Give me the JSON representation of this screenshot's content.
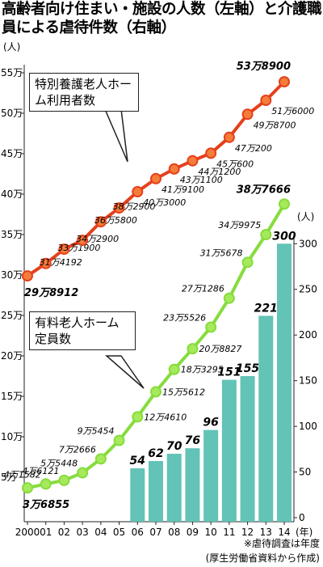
{
  "chart_data": {
    "type": "line",
    "title": "高齢者向け住まい・施設の人数（左軸）と介護職員による虐待件数（右軸）",
    "categories": [
      "2000",
      "01",
      "02",
      "03",
      "04",
      "05",
      "06",
      "07",
      "08",
      "09",
      "10",
      "11",
      "12",
      "13",
      "14"
    ],
    "x_label": "(年)",
    "y_label": "(人)",
    "y2_label": "(人)",
    "ylim": [
      0,
      56
    ],
    "yticks": [
      {
        "value": 5,
        "label": "5万"
      },
      {
        "value": 10,
        "label": "10万"
      },
      {
        "value": 15,
        "label": "15万"
      },
      {
        "value": 20,
        "label": "20万"
      },
      {
        "value": 25,
        "label": "25万"
      },
      {
        "value": 30,
        "label": "30万"
      },
      {
        "value": 35,
        "label": "35万"
      },
      {
        "value": 40,
        "label": "40万"
      },
      {
        "value": 45,
        "label": "45万"
      },
      {
        "value": 50,
        "label": "50万"
      },
      {
        "value": 55,
        "label": "55万"
      }
    ],
    "y2lim": [
      0,
      310
    ],
    "y2ticks": [
      0,
      50,
      100,
      150,
      200,
      250,
      300
    ],
    "series": [
      {
        "name": "特別養護老人ホーム利用者数",
        "type": "line",
        "color": "#e5401c",
        "marker_color": "#f57c3a",
        "values": [
          29.8912,
          31.4192,
          33.19,
          34.29,
          36.58,
          38.29,
          40.3,
          41.91,
          43.11,
          44.12,
          45.06,
          47.02,
          49.87,
          51.6,
          53.89
        ],
        "value_labels": [
          "29万8912",
          "31万4192",
          "33万1900",
          "34万2900",
          "36万5800",
          "38万2900",
          "40万3000",
          "41万9100",
          "43万1100",
          "44万1200",
          "45万600",
          "47万200",
          "49万8700",
          "51万6000",
          "53万8900"
        ]
      },
      {
        "name": "有料老人ホーム定員数",
        "type": "line",
        "color": "#86dc3c",
        "marker_color": "#a6ea5c",
        "values": [
          3.6855,
          4.1582,
          4.6121,
          5.5448,
          7.2666,
          9.5454,
          12.461,
          15.5612,
          18.3295,
          20.8827,
          23.5526,
          27.1286,
          31.5678,
          34.9975,
          38.7666
        ],
        "value_labels": [
          "3万6855",
          "4万1582",
          "4万6121",
          "5万5448",
          "7万2666",
          "9万5454",
          "12万4610",
          "15万5612",
          "18万3295",
          "20万8827",
          "23万5526",
          "27万1286",
          "31万5678",
          "34万9975",
          "38万7666"
        ]
      },
      {
        "type": "bar",
        "axis": "y2",
        "color": "#62c3b6",
        "values": [
          null,
          null,
          null,
          null,
          null,
          null,
          54,
          62,
          70,
          76,
          96,
          151,
          155,
          221,
          300
        ]
      }
    ],
    "notes": [
      "※虐待調査は年度",
      "(厚生労働省資料から作成)"
    ]
  }
}
